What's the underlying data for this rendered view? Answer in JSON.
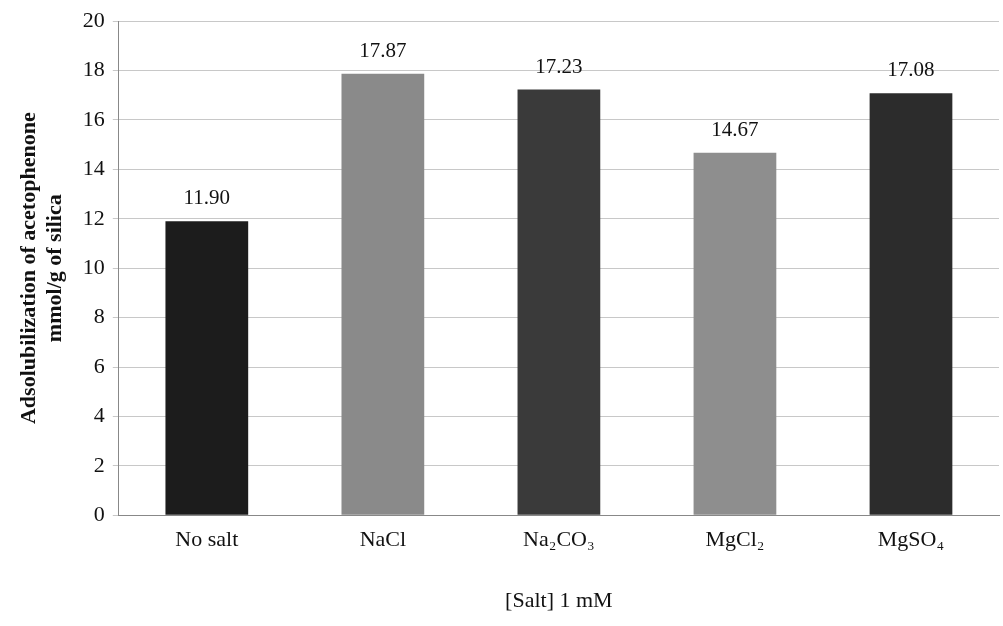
{
  "chart_data": {
    "type": "bar",
    "xlabel": "[Salt] 1 mM",
    "ylabel": "Adsolubilization of acetophenone\nmmol/g of silica",
    "categories": [
      "No salt",
      "NaCl",
      "Na₂CO₃",
      "MgCl₂",
      "MgSO₄"
    ],
    "values": [
      11.9,
      17.87,
      17.23,
      14.67,
      17.08
    ],
    "colors": [
      "#1c1c1c",
      "#8a8a8a",
      "#3a3a3a",
      "#8e8e8e",
      "#2c2c2c"
    ],
    "value_labels": [
      "11.90",
      "17.87",
      "17.23",
      "14.67",
      "17.08"
    ],
    "ylim": [
      0,
      20
    ],
    "yticks": [
      0,
      2,
      4,
      6,
      8,
      10,
      12,
      14,
      16,
      18,
      20
    ],
    "grid": "y"
  }
}
